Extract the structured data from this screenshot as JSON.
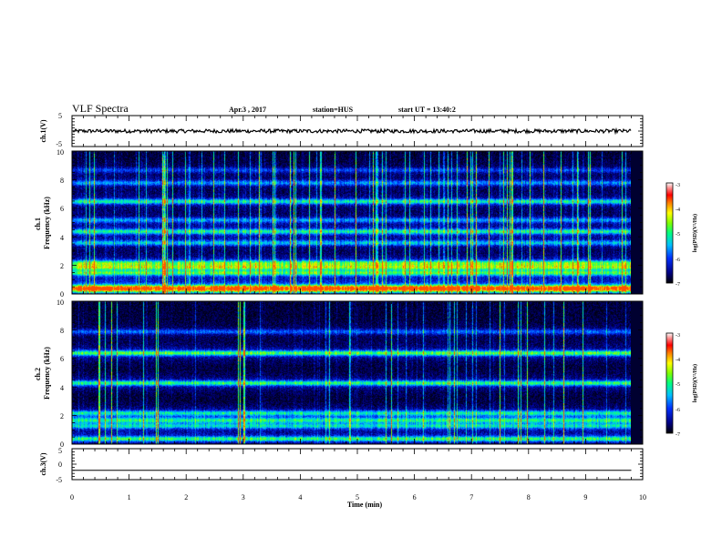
{
  "header": {
    "title": "VLF Spectra",
    "date": "Apr.3 , 2017",
    "station": "station=HUS",
    "start": "start UT = 13:40:2"
  },
  "chart_data": [
    {
      "type": "line",
      "panel": "ch1-waveform",
      "ylabel": "ch.1(V)",
      "ylim": [
        -5,
        5
      ],
      "y_ticks": [
        "5",
        "-5"
      ],
      "signal_level_v": 0,
      "signal_amplitude_v": 0.6,
      "color": "#000000"
    },
    {
      "type": "heatmap",
      "panel": "ch1-spectrogram",
      "ylabel": "ch.1\nFrequency (kHz)",
      "ylim": [
        0,
        10
      ],
      "y_ticks": [
        "0",
        "2",
        "4",
        "6",
        "8",
        "10"
      ],
      "x_extent_min": 9.8,
      "bands_khz": [
        {
          "f": 0.3,
          "level": 0.55
        },
        {
          "f": 0.5,
          "level": 0.65
        },
        {
          "f": 1.5,
          "level": 0.45
        },
        {
          "f": 1.9,
          "level": 0.5
        },
        {
          "f": 2.2,
          "level": 0.45
        },
        {
          "f": 3.6,
          "level": 0.35
        },
        {
          "f": 4.4,
          "level": 0.45
        },
        {
          "f": 5.2,
          "level": 0.3
        },
        {
          "f": 6.5,
          "level": 0.45
        },
        {
          "f": 7.8,
          "level": 0.3
        },
        {
          "f": 8.7,
          "level": 0.2
        }
      ],
      "colorbar": {
        "label": "log(PSD)(V²/Hz)",
        "range": [
          -7,
          -3
        ],
        "ticks": [
          "-3",
          "-4",
          "-5",
          "-6",
          "-7"
        ]
      }
    },
    {
      "type": "heatmap",
      "panel": "ch2-spectrogram",
      "ylabel": "ch.2\nFrequency (kHz)",
      "ylim": [
        0,
        10
      ],
      "y_ticks": [
        "0",
        "2",
        "4",
        "6",
        "8",
        "10"
      ],
      "x_extent_min": 9.8,
      "bands_khz": [
        {
          "f": 0.4,
          "level": 0.5
        },
        {
          "f": 1.3,
          "level": 0.35
        },
        {
          "f": 1.7,
          "level": 0.4
        },
        {
          "f": 2.2,
          "level": 0.4
        },
        {
          "f": 4.3,
          "level": 0.5
        },
        {
          "f": 6.4,
          "level": 0.55
        },
        {
          "f": 7.9,
          "level": 0.25
        }
      ],
      "colorbar": {
        "label": "log(PSD)(V²/Hz)",
        "range": [
          -7,
          -3
        ],
        "ticks": [
          "-3",
          "-4",
          "-5",
          "-6",
          "-7"
        ]
      }
    },
    {
      "type": "line",
      "panel": "ch3-waveform",
      "ylabel": "ch.3(V)",
      "ylim": [
        -5,
        5
      ],
      "y_ticks": [
        "5",
        "0",
        "-5"
      ],
      "signal_level_v": -2,
      "signal_amplitude_v": 0,
      "color": "#000000"
    }
  ],
  "x_axis": {
    "label": "Time (min)",
    "xlim": [
      0,
      10
    ],
    "ticks": [
      "0",
      "1",
      "2",
      "3",
      "4",
      "5",
      "6",
      "7",
      "8",
      "9",
      "10"
    ]
  },
  "colors": {
    "spectrogram_background": "#000030",
    "colormap": [
      "#000000",
      "#0000a0",
      "#0040ff",
      "#00c0ff",
      "#00ff80",
      "#80ff00",
      "#ffff00",
      "#ff8000",
      "#ff0000",
      "#ff8080",
      "#ffffff"
    ]
  }
}
